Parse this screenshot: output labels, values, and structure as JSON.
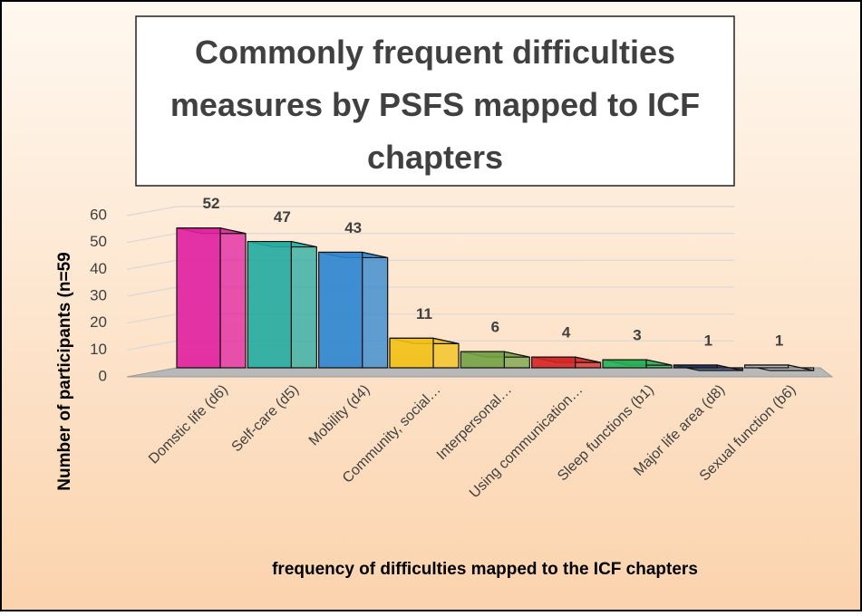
{
  "chart_data": {
    "type": "bar3d",
    "title": "Commonly frequent difficulties measures by PSFS mapped to ICF chapters",
    "x_label": "frequency of difficulties mapped to the ICF chapters",
    "y_label": "Number of participants (n=59",
    "categories": [
      "Domstic life (d6)",
      "Self-care (d5)",
      "Mobility (d4)",
      "Community, social…",
      "Interpersonal…",
      "Using communication…",
      "Sleep functions (b1)",
      "Major life area (d8)",
      "Sexual function (b6)"
    ],
    "values": [
      52,
      47,
      43,
      11,
      6,
      4,
      3,
      1,
      1
    ],
    "colors": [
      "#e01ea0",
      "#22aaa0",
      "#2a84d0",
      "#f2c014",
      "#72a244",
      "#d42222",
      "#22b052",
      "#203266",
      "#b4b4b4"
    ],
    "ylim": [
      0,
      60
    ],
    "yticks": [
      0,
      10,
      20,
      30,
      40,
      50,
      60
    ],
    "grid": true
  }
}
